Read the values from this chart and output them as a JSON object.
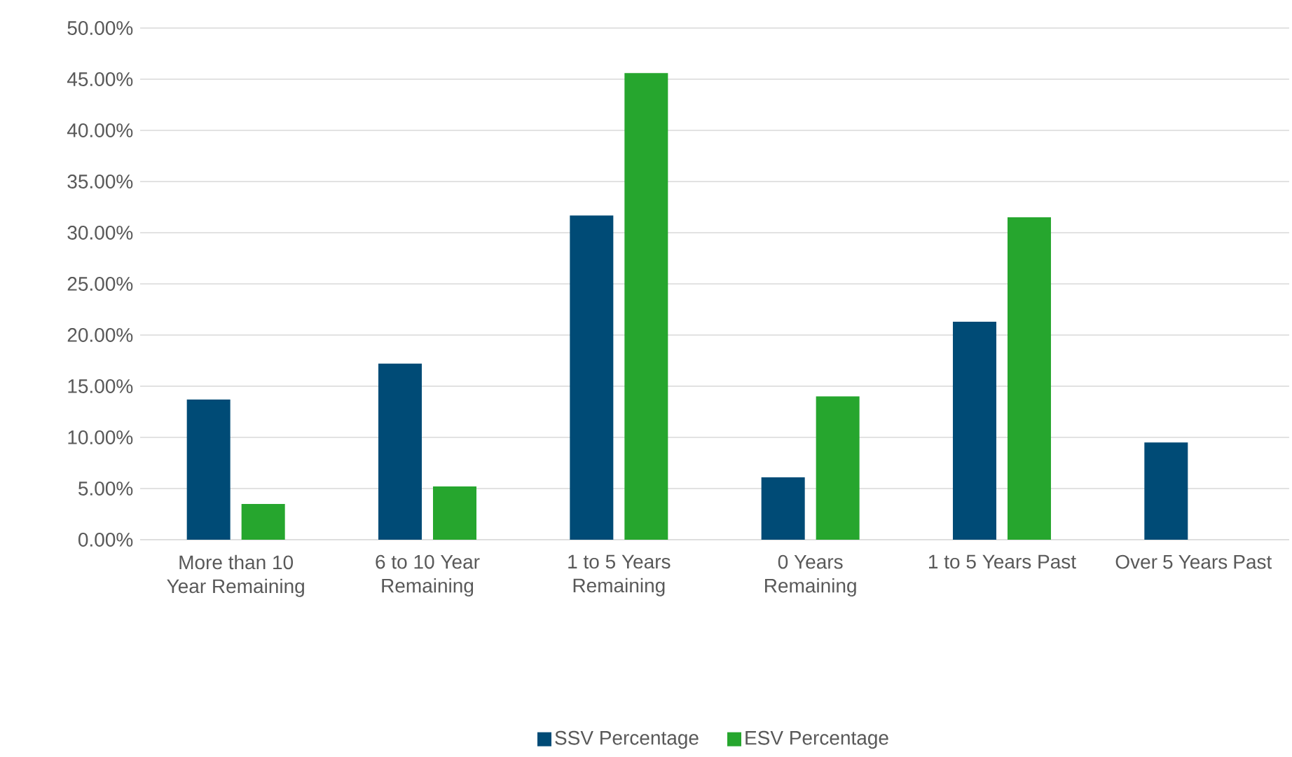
{
  "chart_data": {
    "type": "bar",
    "categories": [
      "More than 10 Year Remaining",
      "6 to 10 Year Remaining",
      "1 to 5 Years Remaining",
      "0 Years Remaining",
      "1 to 5 Years Past",
      "Over 5 Years Past"
    ],
    "series": [
      {
        "name": "SSV Percentage",
        "color": "#004b76",
        "values": [
          13.7,
          17.2,
          31.7,
          6.1,
          21.3,
          9.5
        ]
      },
      {
        "name": "ESV Percentage",
        "color": "#26a62e",
        "values": [
          3.5,
          5.2,
          45.6,
          14.0,
          31.5,
          null
        ]
      }
    ],
    "ylim": [
      0,
      50
    ],
    "yticks": [
      {
        "value": 0,
        "label": "0.00%"
      },
      {
        "value": 5,
        "label": "5.00%"
      },
      {
        "value": 10,
        "label": "10.00%"
      },
      {
        "value": 15,
        "label": "15.00%"
      },
      {
        "value": 20,
        "label": "20.00%"
      },
      {
        "value": 25,
        "label": "25.00%"
      },
      {
        "value": 30,
        "label": "30.00%"
      },
      {
        "value": 35,
        "label": "35.00%"
      },
      {
        "value": 40,
        "label": "40.00%"
      },
      {
        "value": 45,
        "label": "45.00%"
      },
      {
        "value": 50,
        "label": "50.00%"
      }
    ],
    "grid": "y",
    "legend": "bottom"
  }
}
